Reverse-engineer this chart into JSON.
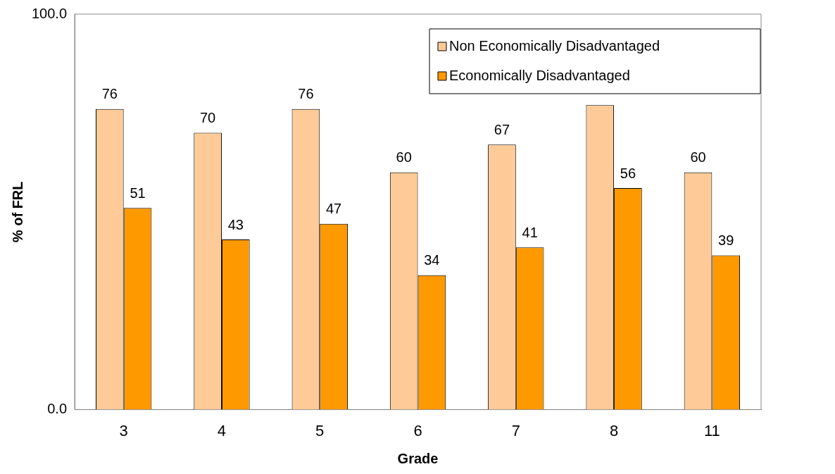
{
  "chart_data": {
    "type": "bar",
    "xlabel": "Grade",
    "ylabel": "% of FRL",
    "categories": [
      "3",
      "4",
      "5",
      "6",
      "7",
      "8",
      "11"
    ],
    "series": [
      {
        "name": "Non Economically Disadvantaged",
        "color": "#fecb98",
        "values": [
          76,
          70,
          76,
          60,
          67,
          77,
          60
        ],
        "value_labels": [
          "76",
          "70",
          "76",
          "60",
          "67",
          null,
          "60"
        ]
      },
      {
        "name": "Economically Disadvantaged",
        "color": "#ff9900",
        "values": [
          51,
          43,
          47,
          34,
          41,
          56,
          39
        ],
        "value_labels": [
          "51",
          "43",
          "47",
          "34",
          "41",
          "56",
          "39"
        ]
      }
    ],
    "ylim": [
      0,
      100
    ],
    "yticks": [
      {
        "value": 0,
        "label": "0.0"
      },
      {
        "value": 100,
        "label": "100.0"
      }
    ],
    "grid": false,
    "legend": "top right"
  }
}
